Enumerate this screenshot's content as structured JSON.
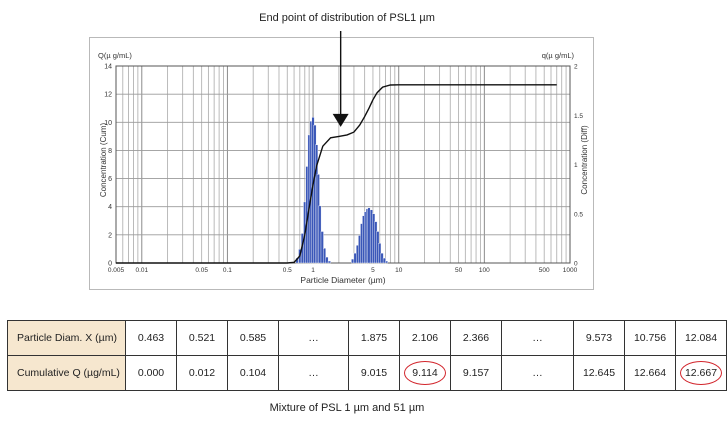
{
  "annotation": "End point of distribution of PSL1 µm",
  "caption": "Mixture of PSL 1 µm and 51 µm",
  "chart_data": {
    "type": "bar",
    "y_left_label": "Q(µ g/mL)",
    "y_right_label": "q(µ g/mL)",
    "ylabel_left": "Concentration (Cum)",
    "ylabel_right": "Concentration (Diff)",
    "xlabel": "Particle Diameter (µm)",
    "x_scale": "log",
    "xlim": [
      0.005,
      1000
    ],
    "ylim_left": [
      0,
      14
    ],
    "ylim_right": [
      0,
      2
    ],
    "x_ticks": [
      {
        "v": 0.005,
        "label": "0.005"
      },
      {
        "v": 0.01,
        "label": "0.01"
      },
      {
        "v": 0.05,
        "label": "0.05"
      },
      {
        "v": 0.1,
        "label": "0.1"
      },
      {
        "v": 0.5,
        "label": "0.5"
      },
      {
        "v": 1,
        "label": "1"
      },
      {
        "v": 5,
        "label": "5"
      },
      {
        "v": 10,
        "label": "10"
      },
      {
        "v": 50,
        "label": "50"
      },
      {
        "v": 100,
        "label": "100"
      },
      {
        "v": 500,
        "label": "500"
      },
      {
        "v": 1000,
        "label": "1000"
      }
    ],
    "y_left_ticks": [
      "0",
      "2",
      "4",
      "6",
      "8",
      "10",
      "12",
      "14"
    ],
    "y_right_ticks": [
      {
        "v": 0,
        "label": "0"
      },
      {
        "v": 0.5,
        "label": "0.5"
      },
      {
        "v": 1,
        "label": "1"
      },
      {
        "v": 1.5,
        "label": "1.5"
      },
      {
        "v": 2,
        "label": "2"
      }
    ],
    "grid": true,
    "histogram": {
      "name": "Concentration (Diff)",
      "color": "#3a57b8",
      "x": [
        0.65,
        0.7,
        0.75,
        0.8,
        0.85,
        0.9,
        0.95,
        1.0,
        1.05,
        1.1,
        1.15,
        1.2,
        1.28,
        1.36,
        1.45,
        1.55,
        2.9,
        3.1,
        3.3,
        3.5,
        3.7,
        3.9,
        4.1,
        4.3,
        4.5,
        4.8,
        5.1,
        5.4,
        5.7,
        6.0,
        6.4,
        6.8,
        7.2
      ],
      "values": [
        0.05,
        0.14,
        0.3,
        0.62,
        0.98,
        1.3,
        1.44,
        1.48,
        1.4,
        1.2,
        0.9,
        0.58,
        0.32,
        0.15,
        0.06,
        0.02,
        0.04,
        0.1,
        0.18,
        0.28,
        0.4,
        0.48,
        0.52,
        0.55,
        0.56,
        0.54,
        0.5,
        0.42,
        0.32,
        0.2,
        0.1,
        0.05,
        0.02
      ]
    },
    "cumulative": {
      "name": "Concentration (Cum)",
      "color": "#111111",
      "x": [
        0.005,
        0.5,
        0.6,
        0.7,
        0.8,
        0.9,
        1.0,
        1.1,
        1.3,
        1.6,
        2.0,
        2.5,
        3.0,
        3.5,
        4.0,
        4.5,
        5.0,
        5.6,
        6.5,
        8.0,
        10,
        20,
        100,
        700
      ],
      "values": [
        0,
        0,
        0.05,
        0.5,
        2.0,
        3.9,
        5.6,
        6.9,
        8.3,
        8.9,
        9.0,
        9.1,
        9.3,
        9.8,
        10.4,
        11.0,
        11.6,
        12.1,
        12.5,
        12.65,
        12.667,
        12.667,
        12.667,
        12.667
      ]
    }
  },
  "table": {
    "rows": [
      {
        "label": "Particle Diam. X (µm)",
        "cells": [
          "0.463",
          "0.521",
          "0.585",
          "…",
          "1.875",
          "2.106",
          "2.366",
          "…",
          "9.573",
          "10.756",
          "12.084"
        ]
      },
      {
        "label": "Cumulative Q (µg/mL)",
        "cells": [
          "0.000",
          "0.012",
          "0.104",
          "…",
          "9.015",
          "9.114",
          "9.157",
          "…",
          "12.645",
          "12.664",
          "12.667"
        ]
      }
    ],
    "highlighted_cells": [
      "9.114",
      "12.667"
    ]
  }
}
